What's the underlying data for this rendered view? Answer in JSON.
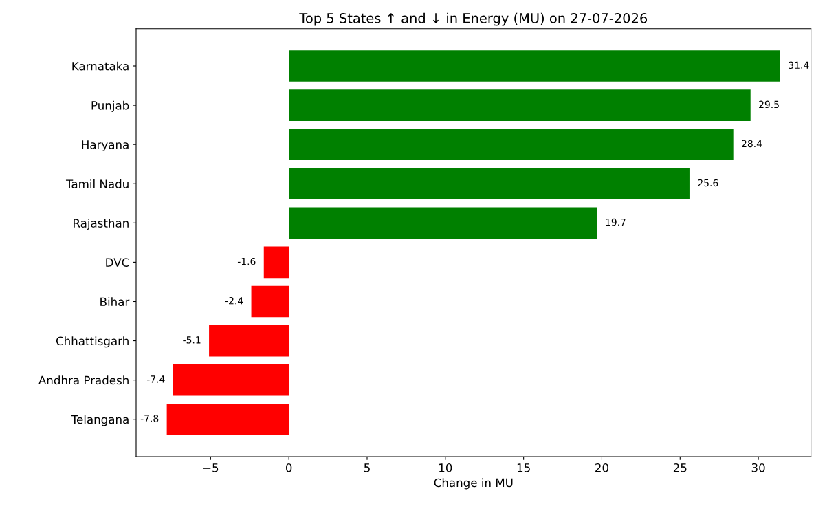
{
  "chart_data": {
    "type": "bar",
    "orientation": "horizontal",
    "title": "Top 5 States ↑ and ↓ in Energy (MU) on 27-07-2026",
    "xlabel": "Change in MU",
    "categories": [
      "Karnataka",
      "Punjab",
      "Haryana",
      "Tamil Nadu",
      "Rajasthan",
      "DVC",
      "Bihar",
      "Chhattisgarh",
      "Andhra Pradesh",
      "Telangana"
    ],
    "values": [
      31.4,
      29.5,
      28.4,
      25.6,
      19.7,
      -1.6,
      -2.4,
      -5.1,
      -7.4,
      -7.8
    ],
    "colors": [
      "#008000",
      "#008000",
      "#008000",
      "#008000",
      "#008000",
      "#ff0000",
      "#ff0000",
      "#ff0000",
      "#ff0000",
      "#ff0000"
    ],
    "xlim": [
      -9.76,
      33.36
    ],
    "xticks": [
      {
        "value": -5,
        "label": "−5"
      },
      0,
      5,
      10,
      15,
      20,
      25,
      30
    ],
    "data_labels": true
  }
}
